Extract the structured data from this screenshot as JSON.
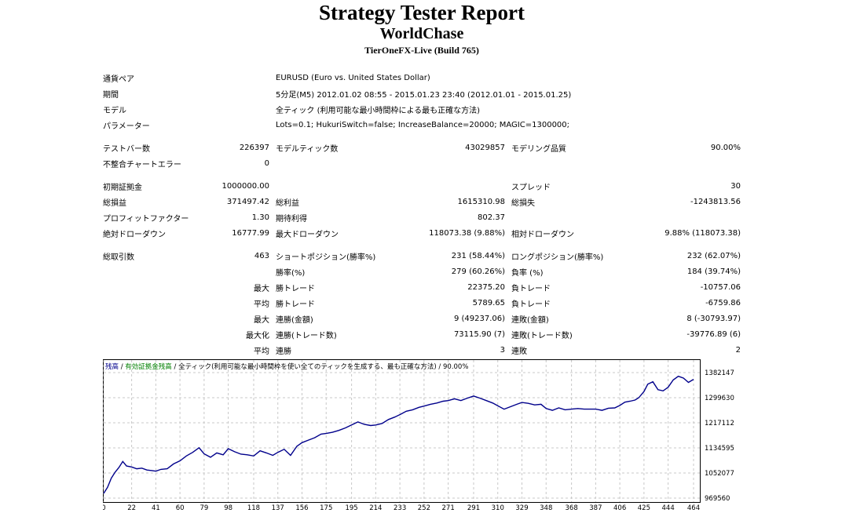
{
  "header": {
    "title": "Strategy Tester Report",
    "subtitle": "WorldChase",
    "build": "TierOneFX-Live (Build 765)"
  },
  "info": [
    {
      "label": "通貨ペア",
      "value": "EURUSD (Euro vs. United States Dollar)"
    },
    {
      "label": "期間",
      "value": "5分足(M5) 2012.01.02 08:55 - 2015.01.23 23:40 (2012.01.01 - 2015.01.25)"
    },
    {
      "label": "モデル",
      "value": "全ティック (利用可能な最小時間枠による最も正確な方法)"
    },
    {
      "label": "パラメーター",
      "value": "Lots=0.1; HukuriSwitch=false; IncreaseBalance=20000; MAGIC=1300000;"
    }
  ],
  "stats": {
    "bars_label": "テストバー数",
    "bars": "226397",
    "ticks_label": "モデルティック数",
    "ticks": "43029857",
    "quality_label": "モデリング品質",
    "quality": "90.00%",
    "mismatch_label": "不整合チャートエラー",
    "mismatch": "0",
    "deposit_label": "初期証拠金",
    "deposit": "1000000.00",
    "spread_label": "スプレッド",
    "spread": "30",
    "net_label": "総損益",
    "net": "371497.42",
    "gross_profit_label": "総利益",
    "gross_profit": "1615310.98",
    "gross_loss_label": "総損失",
    "gross_loss": "-1243813.56",
    "pf_label": "プロフィットファクター",
    "pf": "1.30",
    "expected_label": "期待利得",
    "expected": "802.37",
    "abs_dd_label": "絶対ドローダウン",
    "abs_dd": "16777.99",
    "max_dd_label": "最大ドローダウン",
    "max_dd": "118073.38 (9.88%)",
    "rel_dd_label": "相対ドローダウン",
    "rel_dd": "9.88% (118073.38)",
    "trades_label": "総取引数",
    "trades": "463",
    "short_label": "ショートポジション(勝率%)",
    "short": "231 (58.44%)",
    "long_label": "ロングポジション(勝率%)",
    "long": "232 (62.07%)",
    "win_label": "勝率(%)",
    "win": "279 (60.26%)",
    "loss_label": "負率 (%)",
    "loss": "184 (39.74%)",
    "max_word": "最大",
    "avg_word": "平均",
    "maxize_word": "最大化",
    "win_trade_label": "勝トレード",
    "loss_trade_label": "負トレード",
    "largest_win": "22375.20",
    "largest_loss": "-10757.06",
    "avg_win": "5789.65",
    "avg_loss": "-6759.86",
    "consec_win_money_label": "連勝(金額)",
    "consec_win_money": "9 (49237.06)",
    "consec_loss_money_label": "連敗(金額)",
    "consec_loss_money": "8 (-30793.97)",
    "consec_win_count_label": "連勝(トレード数)",
    "consec_win_count": "73115.90 (7)",
    "consec_loss_count_label": "連敗(トレード数)",
    "consec_loss_count": "-39776.89 (6)",
    "avg_consec_win_label": "連勝",
    "avg_consec_win": "3",
    "avg_consec_loss_label": "連敗",
    "avg_consec_loss": "2"
  },
  "chart_data": {
    "type": "line",
    "legend": {
      "balance": "残高",
      "sep1": " / ",
      "equity": "有効証拠金残高",
      "sep2": " / ",
      "model": "全ティック(利用可能な最小時間枠を使い全てのティックを生成する、最も正確な方法)",
      "sep3": " / ",
      "quality": "90.00%"
    },
    "colors": {
      "line": "#00008b",
      "balance_text": "#00008b",
      "equity_text": "#008000",
      "grid": "#c8c8c8"
    },
    "x_ticks": [
      0,
      22,
      41,
      60,
      79,
      98,
      118,
      137,
      156,
      175,
      195,
      214,
      233,
      252,
      271,
      291,
      310,
      329,
      348,
      368,
      387,
      406,
      425,
      444,
      464
    ],
    "y_ticks": [
      "1382147",
      "1299630",
      "1217112",
      "1134595",
      "1052077",
      "969560"
    ],
    "y_tick_values": [
      1382147,
      1299630,
      1217112,
      1134595,
      1052077,
      969560
    ],
    "xlim": [
      0,
      464
    ],
    "ylim": [
      969560,
      1382147
    ],
    "x": [
      0,
      3,
      6,
      9,
      12,
      15,
      18,
      22,
      26,
      30,
      34,
      38,
      41,
      45,
      50,
      55,
      60,
      65,
      70,
      75,
      79,
      84,
      89,
      94,
      98,
      103,
      108,
      113,
      118,
      123,
      128,
      133,
      137,
      142,
      147,
      152,
      156,
      161,
      166,
      171,
      175,
      180,
      185,
      190,
      195,
      200,
      205,
      210,
      214,
      219,
      224,
      229,
      233,
      238,
      243,
      248,
      252,
      257,
      262,
      267,
      271,
      276,
      281,
      286,
      291,
      296,
      301,
      306,
      310,
      315,
      320,
      325,
      329,
      334,
      339,
      344,
      348,
      353,
      358,
      363,
      368,
      373,
      378,
      383,
      387,
      392,
      397,
      402,
      406,
      410,
      414,
      418,
      421,
      425,
      428,
      432,
      436,
      440,
      444,
      448,
      452,
      456,
      460,
      464
    ],
    "y": [
      985000,
      1005000,
      1035000,
      1055000,
      1070000,
      1090000,
      1075000,
      1072000,
      1066000,
      1068000,
      1062000,
      1060000,
      1058000,
      1064000,
      1066000,
      1082000,
      1092000,
      1108000,
      1120000,
      1135000,
      1115000,
      1104000,
      1118000,
      1112000,
      1132000,
      1122000,
      1114000,
      1112000,
      1108000,
      1125000,
      1118000,
      1110000,
      1120000,
      1130000,
      1110000,
      1140000,
      1152000,
      1160000,
      1168000,
      1180000,
      1182000,
      1186000,
      1192000,
      1200000,
      1210000,
      1220000,
      1212000,
      1208000,
      1210000,
      1215000,
      1228000,
      1236000,
      1244000,
      1255000,
      1260000,
      1268000,
      1272000,
      1278000,
      1282000,
      1288000,
      1290000,
      1296000,
      1290000,
      1298000,
      1305000,
      1298000,
      1290000,
      1282000,
      1273000,
      1262000,
      1270000,
      1278000,
      1284000,
      1281000,
      1276000,
      1278000,
      1264000,
      1258000,
      1266000,
      1260000,
      1262000,
      1264000,
      1262000,
      1262000,
      1262000,
      1258000,
      1265000,
      1266000,
      1274000,
      1285000,
      1288000,
      1292000,
      1300000,
      1320000,
      1344000,
      1352000,
      1326000,
      1322000,
      1334000,
      1358000,
      1370000,
      1364000,
      1350000,
      1360000
    ]
  }
}
